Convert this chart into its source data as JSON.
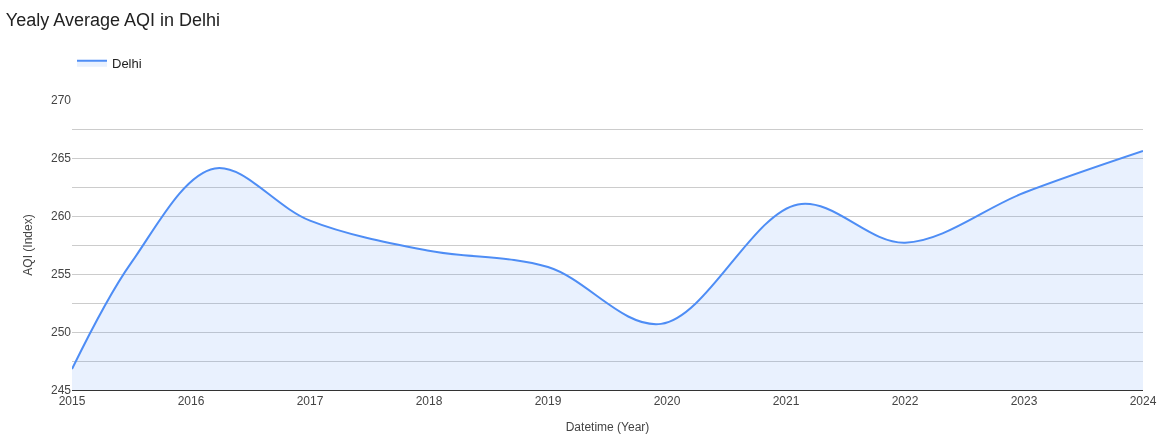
{
  "chart_data": {
    "type": "area",
    "title": "Yealy Average AQI in Delhi",
    "xlabel": "Datetime (Year)",
    "ylabel": "AQI (Index)",
    "series": [
      {
        "name": "Delhi",
        "color": "#4e8df5",
        "x": [
          2015,
          2015.5,
          2016.2,
          2017,
          2018,
          2019,
          2019.95,
          2021.1,
          2022,
          2023,
          2024
        ],
        "values": [
          246.8,
          256.0,
          264.1,
          259.6,
          257.0,
          255.6,
          250.7,
          261.0,
          257.7,
          262.0,
          265.6
        ]
      }
    ],
    "xlim": [
      2015,
      2024
    ],
    "xticks": [
      2015,
      2016,
      2017,
      2018,
      2019,
      2020,
      2021,
      2022,
      2023,
      2024
    ],
    "ylim": [
      245,
      270
    ],
    "yticks": [
      245,
      {
        "value": 247.5,
        "label": null
      },
      250,
      {
        "value": 252.5,
        "label": null
      },
      255,
      {
        "value": 257.5,
        "label": null
      },
      260,
      {
        "value": 262.5,
        "label": null
      },
      265,
      {
        "value": 267.5,
        "label": null
      },
      270
    ],
    "grid": "y",
    "legend": "top left"
  }
}
